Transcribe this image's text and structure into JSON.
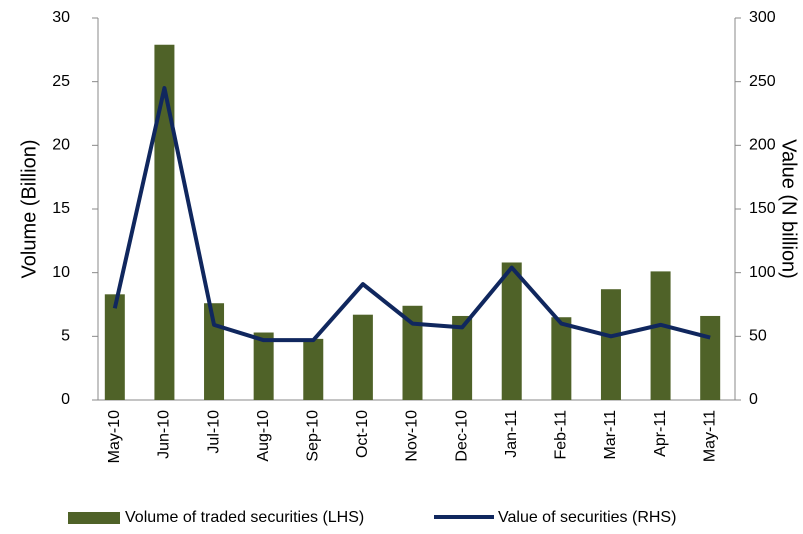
{
  "chart_data": {
    "type": "bar",
    "categories": [
      "May-10",
      "Jun-10",
      "Jul-10",
      "Aug-10",
      "Sep-10",
      "Oct-10",
      "Nov-10",
      "Dec-10",
      "Jan-11",
      "Feb-11",
      "Mar-11",
      "Apr-11",
      "May-11"
    ],
    "series": [
      {
        "name": "Volume of traded securities (LHS)",
        "color": "#4f6228",
        "type": "bar",
        "values": [
          8.3,
          27.9,
          7.6,
          5.3,
          4.8,
          6.7,
          7.4,
          6.6,
          10.8,
          6.5,
          8.7,
          10.1,
          6.6
        ]
      },
      {
        "name": "Value of securities (RHS)",
        "color": "#10275e",
        "type": "line",
        "axis": "y2",
        "values": [
          72,
          245,
          59,
          47,
          47,
          91,
          60,
          57,
          104,
          60,
          50,
          59,
          49
        ]
      }
    ],
    "ylabel": "Volume (Billion)",
    "y2label": "Value (N billion)",
    "ylim": [
      0,
      30
    ],
    "yticks": [
      0,
      5,
      10,
      15,
      20,
      25,
      30
    ],
    "y2lim": [
      0,
      300
    ],
    "y2ticks": [
      0,
      50,
      100,
      150,
      200,
      250,
      300
    ],
    "grid": false,
    "legend": "bottom"
  }
}
